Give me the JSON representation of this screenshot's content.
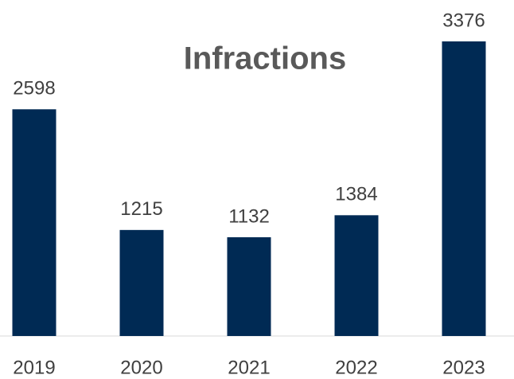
{
  "chart_data": {
    "type": "bar",
    "title": "Infractions",
    "categories": [
      "2019",
      "2020",
      "2021",
      "2022",
      "2023"
    ],
    "values": [
      2598,
      1215,
      1132,
      1384,
      3376
    ],
    "color": "#002a54"
  }
}
